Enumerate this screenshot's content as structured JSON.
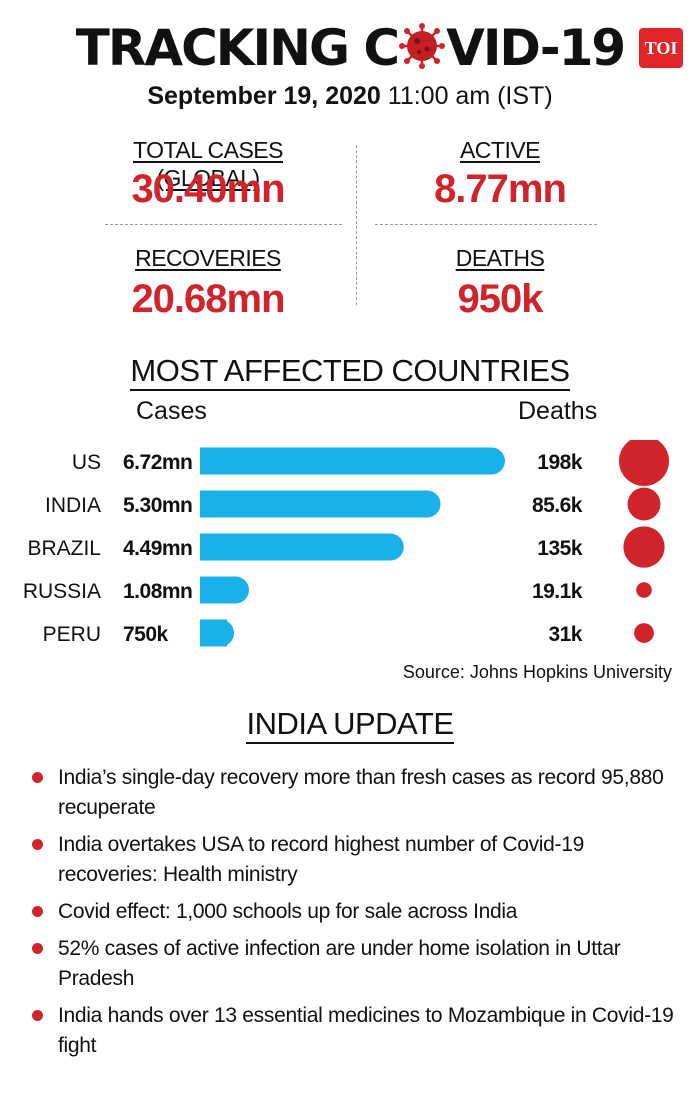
{
  "header": {
    "title_before": "TRACKING C",
    "title_after": "VID-19",
    "brand": "TOI",
    "date": "September 19, 2020",
    "time": "11:00 am (IST)"
  },
  "stats": {
    "total_label": "TOTAL CASES (GLOBAL)",
    "total_value": "30.40mn",
    "active_label": "ACTIVE",
    "active_value": "8.77mn",
    "recoveries_label": "RECOVERIES",
    "recoveries_value": "20.68mn",
    "deaths_label": "DEATHS",
    "deaths_value": "950k"
  },
  "colors": {
    "accent": "#d0232a",
    "bar": "#1ab0ea"
  },
  "chart_data": {
    "type": "bar",
    "title": "MOST AFFECTED COUNTRIES",
    "cases_header": "Cases",
    "deaths_header": "Deaths",
    "categories": [
      "US",
      "INDIA",
      "BRAZIL",
      "RUSSIA",
      "PERU"
    ],
    "series": [
      {
        "name": "Cases",
        "unit": "mn",
        "values": [
          6.72,
          5.3,
          4.49,
          1.08,
          0.75
        ],
        "labels": [
          "6.72mn",
          "5.30mn",
          "4.49mn",
          "1.08mn",
          "750k"
        ]
      },
      {
        "name": "Deaths",
        "unit": "k",
        "values": [
          198,
          85.6,
          135,
          19.1,
          31
        ],
        "labels": [
          "198k",
          "85.6k",
          "135k",
          "19.1k",
          "31k"
        ]
      }
    ],
    "xlim": [
      0,
      6.72
    ],
    "source": "Source: Johns Hopkins University"
  },
  "india_update": {
    "title": "INDIA UPDATE",
    "items": [
      "India’s single-day recovery more than fresh cases as record 95,880 recuperate",
      "India overtakes USA to record highest number of Covid-19 recoveries: Health ministry",
      "Covid effect: 1,000 schools up for sale across India",
      "52% cases of active infection are under home isolation in Uttar Pradesh",
      "India hands over 13 essential medicines to Mozambique in Covid-19 fight"
    ]
  }
}
